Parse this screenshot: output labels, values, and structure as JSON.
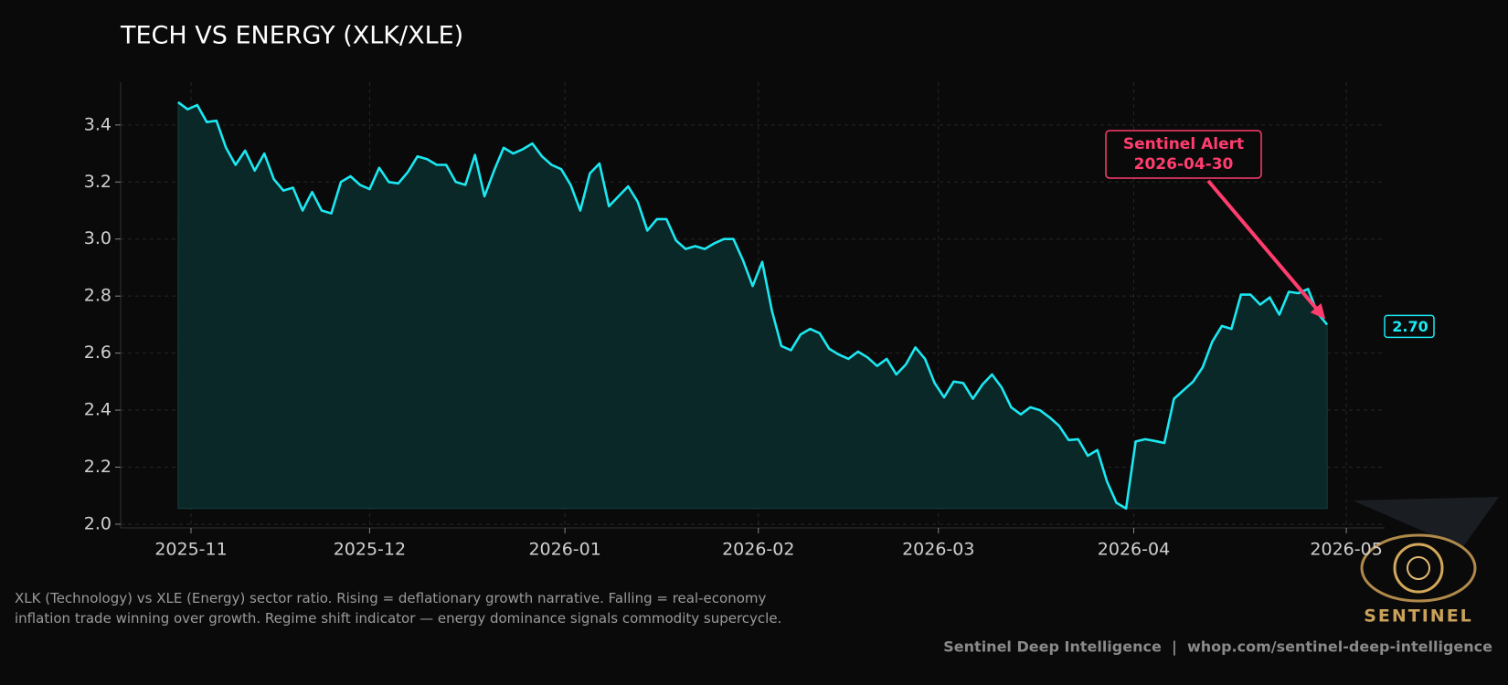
{
  "chart_data": {
    "type": "line",
    "title": "TECH VS ENERGY (XLK/XLE)",
    "series": [
      {
        "name": "XLK/XLE",
        "color": "#1ce8f2",
        "fill": "#0a2828",
        "values": [
          3.48,
          3.455,
          3.47,
          3.41,
          3.415,
          3.32,
          3.26,
          3.31,
          3.24,
          3.3,
          3.21,
          3.17,
          3.18,
          3.1,
          3.165,
          3.1,
          3.09,
          3.2,
          3.22,
          3.19,
          3.175,
          3.25,
          3.2,
          3.195,
          3.235,
          3.29,
          3.28,
          3.26,
          3.26,
          3.2,
          3.19,
          3.295,
          3.15,
          3.24,
          3.32,
          3.3,
          3.315,
          3.335,
          3.29,
          3.26,
          3.245,
          3.19,
          3.1,
          3.23,
          3.265,
          3.115,
          3.15,
          3.185,
          3.13,
          3.03,
          3.07,
          3.07,
          2.995,
          2.965,
          2.975,
          2.965,
          2.985,
          3.0,
          3.0,
          2.925,
          2.835,
          2.92,
          2.75,
          2.625,
          2.61,
          2.665,
          2.685,
          2.67,
          2.615,
          2.595,
          2.58,
          2.605,
          2.585,
          2.555,
          2.58,
          2.525,
          2.56,
          2.62,
          2.58,
          2.495,
          2.445,
          2.5,
          2.495,
          2.44,
          2.49,
          2.525,
          2.48,
          2.41,
          2.385,
          2.41,
          2.4,
          2.375,
          2.345,
          2.295,
          2.298,
          2.24,
          2.26,
          2.15,
          2.075,
          2.055,
          2.29,
          2.298,
          2.292,
          2.285,
          2.44,
          2.47,
          2.5,
          2.55,
          2.64,
          2.695,
          2.685,
          2.805,
          2.805,
          2.77,
          2.795,
          2.735,
          2.815,
          2.81,
          2.825,
          2.74,
          2.7
        ]
      }
    ],
    "last_value_label": "2.70",
    "xlim": [
      -6,
      126
    ],
    "xticks": [
      {
        "value": 1.35,
        "label": "2025-11"
      },
      {
        "value": 20,
        "label": "2025-12"
      },
      {
        "value": 40.4,
        "label": "2026-01"
      },
      {
        "value": 60.6,
        "label": "2026-02"
      },
      {
        "value": 79.4,
        "label": "2026-03"
      },
      {
        "value": 99.8,
        "label": "2026-04"
      },
      {
        "value": 122,
        "label": "2026-05"
      }
    ],
    "ylim": [
      1.987,
      3.55
    ],
    "yticks": [
      {
        "value": 2,
        "label": "2.0"
      },
      2.2,
      2.4,
      2.6,
      2.8,
      {
        "value": 3,
        "label": "3.0"
      },
      3.2,
      3.4
    ],
    "grid": true,
    "annotation": {
      "lines": [
        "Sentinel Alert",
        "2026-04-30"
      ],
      "color": "#ff3d6e"
    },
    "caption": "XLK (Technology) vs XLE (Energy) sector ratio. Rising = deflationary growth narrative. Falling = real-economy inflation trade winning over growth. Regime shift indicator — energy dominance signals commodity supercycle.",
    "credit": "Sentinel Deep Intelligence  |  whop.com/sentinel-deep-intelligence",
    "logo_text": "SENTINEL"
  }
}
